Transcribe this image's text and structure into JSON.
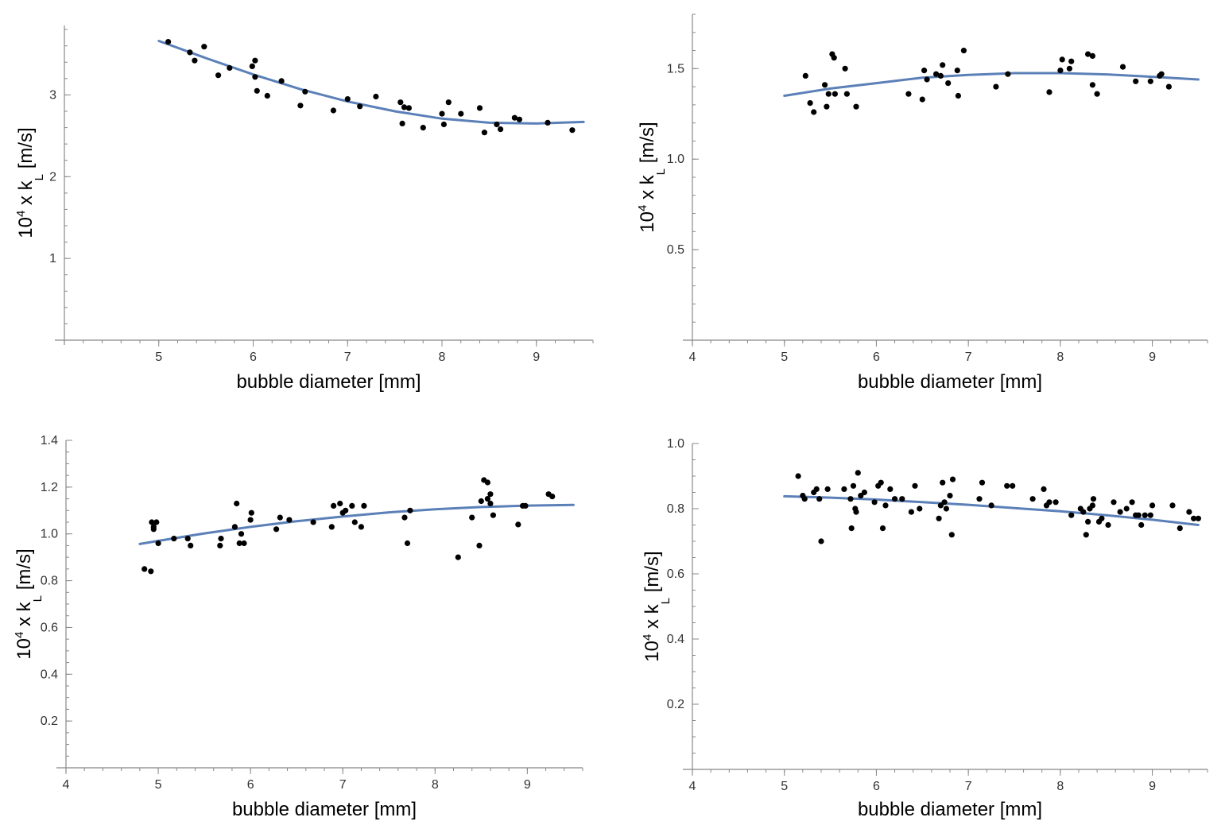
{
  "chart_data": [
    {
      "type": "scatter",
      "panel": "top-left",
      "xlabel": "bubble diameter [mm]",
      "ylabel": {
        "prefix": "10",
        "exp": "4",
        "mid": " x k",
        "sub": "L",
        "unit": " [m/s]"
      },
      "xlim": [
        4.0,
        9.6
      ],
      "ylim": [
        0,
        3.85
      ],
      "x_ticks": [
        5,
        6,
        7,
        8,
        9
      ],
      "x_tick_labels": [
        "5",
        "6",
        "7",
        "8",
        "9"
      ],
      "y_ticks": [
        1,
        2,
        3
      ],
      "y_tick_labels": [
        "1",
        "2",
        "3"
      ],
      "x_minor_step": 0.2,
      "y_minor_step": 0.2,
      "fit": [
        [
          5.0,
          3.66
        ],
        [
          5.5,
          3.45
        ],
        [
          6.0,
          3.25
        ],
        [
          6.5,
          3.07
        ],
        [
          7.0,
          2.92
        ],
        [
          7.5,
          2.8
        ],
        [
          8.0,
          2.71
        ],
        [
          8.5,
          2.66
        ],
        [
          9.0,
          2.65
        ],
        [
          9.5,
          2.67
        ]
      ],
      "points": [
        [
          5.1,
          3.65
        ],
        [
          5.33,
          3.52
        ],
        [
          5.38,
          3.42
        ],
        [
          5.48,
          3.59
        ],
        [
          5.63,
          3.24
        ],
        [
          5.75,
          3.33
        ],
        [
          5.99,
          3.35
        ],
        [
          6.02,
          3.42
        ],
        [
          6.02,
          3.22
        ],
        [
          6.04,
          3.05
        ],
        [
          6.15,
          2.99
        ],
        [
          6.3,
          3.17
        ],
        [
          6.5,
          2.87
        ],
        [
          6.55,
          3.04
        ],
        [
          6.85,
          2.81
        ],
        [
          7.0,
          2.95
        ],
        [
          7.13,
          2.86
        ],
        [
          7.3,
          2.98
        ],
        [
          7.56,
          2.91
        ],
        [
          7.58,
          2.65
        ],
        [
          7.6,
          2.85
        ],
        [
          7.65,
          2.84
        ],
        [
          7.8,
          2.6
        ],
        [
          8.0,
          2.77
        ],
        [
          8.02,
          2.64
        ],
        [
          8.07,
          2.91
        ],
        [
          8.2,
          2.77
        ],
        [
          8.4,
          2.84
        ],
        [
          8.45,
          2.54
        ],
        [
          8.58,
          2.64
        ],
        [
          8.62,
          2.58
        ],
        [
          8.77,
          2.72
        ],
        [
          8.82,
          2.7
        ],
        [
          9.12,
          2.66
        ],
        [
          9.38,
          2.57
        ]
      ]
    },
    {
      "type": "scatter",
      "panel": "top-right",
      "xlabel": "bubble diameter [mm]",
      "ylabel": {
        "prefix": "10",
        "exp": "4",
        "mid": " x k",
        "sub": "L",
        "unit": " [m/s]"
      },
      "xlim": [
        4.0,
        9.6
      ],
      "ylim": [
        0,
        1.8
      ],
      "x_ticks": [
        4,
        5,
        6,
        7,
        8,
        9
      ],
      "x_tick_labels": [
        "4",
        "5",
        "6",
        "7",
        "8",
        "9"
      ],
      "y_ticks": [
        0.5,
        1.0,
        1.5
      ],
      "y_tick_labels": [
        "0.5",
        "1.0",
        "1.5"
      ],
      "x_minor_step": 0.2,
      "y_minor_step": 0.1,
      "fit": [
        [
          5.0,
          1.35
        ],
        [
          5.5,
          1.39
        ],
        [
          6.0,
          1.42
        ],
        [
          6.5,
          1.45
        ],
        [
          7.0,
          1.465
        ],
        [
          7.5,
          1.475
        ],
        [
          8.0,
          1.475
        ],
        [
          8.5,
          1.468
        ],
        [
          9.0,
          1.455
        ],
        [
          9.5,
          1.44
        ]
      ],
      "points": [
        [
          5.23,
          1.46
        ],
        [
          5.28,
          1.31
        ],
        [
          5.32,
          1.26
        ],
        [
          5.44,
          1.41
        ],
        [
          5.46,
          1.29
        ],
        [
          5.48,
          1.36
        ],
        [
          5.52,
          1.58
        ],
        [
          5.54,
          1.56
        ],
        [
          5.55,
          1.36
        ],
        [
          5.66,
          1.5
        ],
        [
          5.68,
          1.36
        ],
        [
          5.78,
          1.29
        ],
        [
          6.35,
          1.36
        ],
        [
          6.5,
          1.33
        ],
        [
          6.52,
          1.49
        ],
        [
          6.55,
          1.44
        ],
        [
          6.65,
          1.47
        ],
        [
          6.7,
          1.46
        ],
        [
          6.72,
          1.52
        ],
        [
          6.78,
          1.42
        ],
        [
          6.88,
          1.49
        ],
        [
          6.89,
          1.35
        ],
        [
          6.95,
          1.6
        ],
        [
          7.3,
          1.4
        ],
        [
          7.43,
          1.47
        ],
        [
          7.88,
          1.37
        ],
        [
          8.0,
          1.49
        ],
        [
          8.02,
          1.55
        ],
        [
          8.1,
          1.5
        ],
        [
          8.12,
          1.54
        ],
        [
          8.3,
          1.58
        ],
        [
          8.35,
          1.57
        ],
        [
          8.35,
          1.41
        ],
        [
          8.4,
          1.36
        ],
        [
          8.68,
          1.51
        ],
        [
          8.82,
          1.43
        ],
        [
          8.98,
          1.43
        ],
        [
          9.08,
          1.46
        ],
        [
          9.1,
          1.47
        ],
        [
          9.18,
          1.4
        ]
      ]
    },
    {
      "type": "scatter",
      "panel": "bottom-left",
      "xlabel": "bubble diameter [mm]",
      "ylabel": {
        "prefix": "10",
        "exp": "4",
        "mid": " x k",
        "sub": "L",
        "unit": " [m/s]"
      },
      "xlim": [
        4.0,
        9.6
      ],
      "ylim": [
        0,
        1.4
      ],
      "x_ticks": [
        4,
        5,
        6,
        7,
        8,
        9
      ],
      "x_tick_labels": [
        "4",
        "5",
        "6",
        "7",
        "8",
        "9"
      ],
      "y_ticks": [
        0.2,
        0.4,
        0.6,
        0.8,
        1.0,
        1.2,
        1.4
      ],
      "y_tick_labels": [
        "0.2",
        "0.4",
        "0.6",
        "0.8",
        "1.0",
        "1.2",
        "1.4"
      ],
      "x_minor_step": 0.2,
      "y_minor_step": 0.05,
      "fit": [
        [
          4.8,
          0.957
        ],
        [
          5.0,
          0.97
        ],
        [
          5.5,
          1.002
        ],
        [
          6.0,
          1.03
        ],
        [
          6.5,
          1.054
        ],
        [
          7.0,
          1.074
        ],
        [
          7.5,
          1.092
        ],
        [
          8.0,
          1.105
        ],
        [
          8.5,
          1.115
        ],
        [
          9.0,
          1.121
        ],
        [
          9.5,
          1.124
        ]
      ],
      "points": [
        [
          4.85,
          0.85
        ],
        [
          4.92,
          0.84
        ],
        [
          4.93,
          1.05
        ],
        [
          4.95,
          1.03
        ],
        [
          4.95,
          1.02
        ],
        [
          4.98,
          1.05
        ],
        [
          5.0,
          0.96
        ],
        [
          5.17,
          0.98
        ],
        [
          5.32,
          0.98
        ],
        [
          5.35,
          0.95
        ],
        [
          5.67,
          0.95
        ],
        [
          5.68,
          0.98
        ],
        [
          5.83,
          1.03
        ],
        [
          5.85,
          1.13
        ],
        [
          5.88,
          0.96
        ],
        [
          5.9,
          1.0
        ],
        [
          5.93,
          0.96
        ],
        [
          6.0,
          1.06
        ],
        [
          6.01,
          1.09
        ],
        [
          6.28,
          1.02
        ],
        [
          6.32,
          1.07
        ],
        [
          6.42,
          1.06
        ],
        [
          6.68,
          1.05
        ],
        [
          6.88,
          1.03
        ],
        [
          6.9,
          1.12
        ],
        [
          6.97,
          1.13
        ],
        [
          7.0,
          1.09
        ],
        [
          7.03,
          1.1
        ],
        [
          7.1,
          1.12
        ],
        [
          7.13,
          1.05
        ],
        [
          7.2,
          1.03
        ],
        [
          7.23,
          1.12
        ],
        [
          7.67,
          1.07
        ],
        [
          7.7,
          0.96
        ],
        [
          7.73,
          1.1
        ],
        [
          8.25,
          0.9
        ],
        [
          8.4,
          1.07
        ],
        [
          8.48,
          0.95
        ],
        [
          8.5,
          1.14
        ],
        [
          8.53,
          1.23
        ],
        [
          8.57,
          1.22
        ],
        [
          8.57,
          1.15
        ],
        [
          8.6,
          1.17
        ],
        [
          8.6,
          1.13
        ],
        [
          8.63,
          1.08
        ],
        [
          8.9,
          1.04
        ],
        [
          8.95,
          1.12
        ],
        [
          8.98,
          1.12
        ],
        [
          9.23,
          1.17
        ],
        [
          9.27,
          1.16
        ]
      ]
    },
    {
      "type": "scatter",
      "panel": "bottom-right",
      "xlabel": "bubble diameter [mm]",
      "ylabel": {
        "prefix": "10",
        "exp": "4",
        "mid": " x k",
        "sub": "L",
        "unit": " [m/s]"
      },
      "xlim": [
        4.0,
        9.6
      ],
      "ylim": [
        0,
        1.0
      ],
      "x_ticks": [
        4,
        5,
        6,
        7,
        8,
        9
      ],
      "x_tick_labels": [
        "4",
        "5",
        "6",
        "7",
        "8",
        "9"
      ],
      "y_ticks": [
        0.2,
        0.4,
        0.6,
        0.8,
        1.0
      ],
      "y_tick_labels": [
        "0.2",
        "0.4",
        "0.6",
        "0.8",
        "1.0"
      ],
      "x_minor_step": 0.2,
      "y_minor_step": 0.05,
      "fit": [
        [
          5.0,
          0.838
        ],
        [
          5.5,
          0.834
        ],
        [
          6.0,
          0.828
        ],
        [
          6.5,
          0.82
        ],
        [
          7.0,
          0.812
        ],
        [
          7.5,
          0.802
        ],
        [
          8.0,
          0.792
        ],
        [
          8.5,
          0.78
        ],
        [
          9.0,
          0.766
        ],
        [
          9.5,
          0.75
        ]
      ],
      "points": [
        [
          5.15,
          0.9
        ],
        [
          5.2,
          0.84
        ],
        [
          5.22,
          0.83
        ],
        [
          5.32,
          0.85
        ],
        [
          5.35,
          0.86
        ],
        [
          5.38,
          0.83
        ],
        [
          5.4,
          0.7
        ],
        [
          5.47,
          0.86
        ],
        [
          5.65,
          0.86
        ],
        [
          5.72,
          0.83
        ],
        [
          5.73,
          0.74
        ],
        [
          5.75,
          0.87
        ],
        [
          5.77,
          0.8
        ],
        [
          5.78,
          0.79
        ],
        [
          5.8,
          0.91
        ],
        [
          5.83,
          0.84
        ],
        [
          5.87,
          0.85
        ],
        [
          5.98,
          0.82
        ],
        [
          6.02,
          0.87
        ],
        [
          6.05,
          0.88
        ],
        [
          6.07,
          0.74
        ],
        [
          6.1,
          0.81
        ],
        [
          6.15,
          0.86
        ],
        [
          6.2,
          0.83
        ],
        [
          6.28,
          0.83
        ],
        [
          6.38,
          0.79
        ],
        [
          6.42,
          0.87
        ],
        [
          6.47,
          0.8
        ],
        [
          6.68,
          0.77
        ],
        [
          6.7,
          0.81
        ],
        [
          6.72,
          0.88
        ],
        [
          6.74,
          0.82
        ],
        [
          6.76,
          0.8
        ],
        [
          6.8,
          0.84
        ],
        [
          6.82,
          0.72
        ],
        [
          6.83,
          0.89
        ],
        [
          7.12,
          0.83
        ],
        [
          7.15,
          0.88
        ],
        [
          7.25,
          0.81
        ],
        [
          7.42,
          0.87
        ],
        [
          7.48,
          0.87
        ],
        [
          7.7,
          0.83
        ],
        [
          7.82,
          0.86
        ],
        [
          7.85,
          0.81
        ],
        [
          7.88,
          0.82
        ],
        [
          7.95,
          0.82
        ],
        [
          8.12,
          0.78
        ],
        [
          8.22,
          0.8
        ],
        [
          8.25,
          0.79
        ],
        [
          8.28,
          0.72
        ],
        [
          8.3,
          0.76
        ],
        [
          8.32,
          0.8
        ],
        [
          8.35,
          0.81
        ],
        [
          8.36,
          0.83
        ],
        [
          8.42,
          0.76
        ],
        [
          8.45,
          0.77
        ],
        [
          8.52,
          0.75
        ],
        [
          8.58,
          0.82
        ],
        [
          8.65,
          0.79
        ],
        [
          8.72,
          0.8
        ],
        [
          8.78,
          0.82
        ],
        [
          8.82,
          0.78
        ],
        [
          8.85,
          0.78
        ],
        [
          8.88,
          0.75
        ],
        [
          8.92,
          0.78
        ],
        [
          8.98,
          0.78
        ],
        [
          9.0,
          0.81
        ],
        [
          9.22,
          0.81
        ],
        [
          9.3,
          0.74
        ],
        [
          9.4,
          0.79
        ],
        [
          9.45,
          0.77
        ],
        [
          9.5,
          0.77
        ]
      ]
    }
  ]
}
